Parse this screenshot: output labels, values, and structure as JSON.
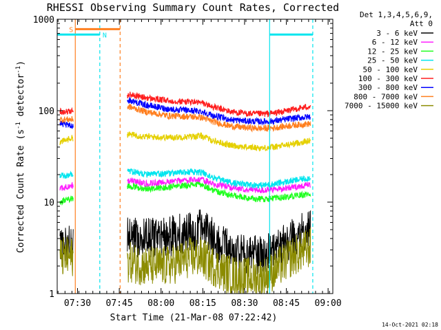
{
  "chart_data": {
    "type": "line",
    "title": "RHESSI Observing Summary Count Rates, Corrected",
    "xlabel": "Start Time (21-Mar-08 07:22:42)",
    "ylabel_main": "Corrected Count Rate (s",
    "ylabel_sup1": "-1",
    "ylabel_mid": " detector",
    "ylabel_sup2": "-1",
    "ylabel_end": ")",
    "yscale": "log",
    "ylim": [
      1,
      1000
    ],
    "xlim_minutes": [
      0,
      99
    ],
    "x_ticks": [
      {
        "label": "07:30",
        "minute": 7.3
      },
      {
        "label": "07:45",
        "minute": 22.3
      },
      {
        "label": "08:00",
        "minute": 37.3
      },
      {
        "label": "08:15",
        "minute": 52.3
      },
      {
        "label": "08:30",
        "minute": 67.3
      },
      {
        "label": "08:45",
        "minute": 82.3
      },
      {
        "label": "09:00",
        "minute": 97.3
      }
    ],
    "y_ticks": [
      {
        "label": "1",
        "value": 1
      },
      {
        "label": "10",
        "value": 10
      },
      {
        "label": "100",
        "value": 100
      },
      {
        "label": "1000",
        "value": 1000
      }
    ],
    "legend": {
      "header1": "Det 1,3,4,5,6,9,",
      "header2": "Att 0",
      "placement": "right"
    },
    "annotations": {
      "saa_label": "S",
      "night_label": "N"
    },
    "gaps_minutes": [
      [
        5.8,
        25.2
      ]
    ],
    "orbit_markers": [
      {
        "type": "saa-start",
        "minute": 6.5,
        "style": "solid",
        "color": "#ff7f1f"
      },
      {
        "type": "saa-end",
        "minute": 22.6,
        "style": "dashed",
        "color": "#ff7f1f"
      },
      {
        "type": "night-start",
        "minute": 15.3,
        "style": "dashed",
        "color": "#00e5ee"
      },
      {
        "type": "night-end",
        "minute": 76.3,
        "style": "solid",
        "color": "#00e5ee"
      },
      {
        "type": "night-start",
        "minute": 91.8,
        "style": "dashed",
        "color": "#00e5ee"
      }
    ],
    "flag_bars": [
      {
        "type": "saa",
        "start": 6.5,
        "end": 22.6,
        "value": 780,
        "color": "#ff7f1f"
      },
      {
        "type": "night",
        "start": 0,
        "end": 15.3,
        "value": 680,
        "color": "#00e5ee"
      },
      {
        "type": "night",
        "start": 76.3,
        "end": 91.8,
        "value": 680,
        "color": "#00e5ee"
      }
    ],
    "series": [
      {
        "name": "3 - 6 keV",
        "color": "#000000",
        "points": [
          [
            1,
            3.5
          ],
          [
            5,
            3.5
          ],
          [
            26,
            4.2
          ],
          [
            32,
            4.0
          ],
          [
            40,
            4.2
          ],
          [
            48,
            4.8
          ],
          [
            52,
            5.0
          ],
          [
            56,
            4.0
          ],
          [
            62,
            3.0
          ],
          [
            68,
            2.6
          ],
          [
            74,
            2.6
          ],
          [
            78,
            3.0
          ],
          [
            84,
            4.0
          ],
          [
            91,
            5.0
          ]
        ]
      },
      {
        "name": "6 - 12 keV",
        "color": "#ff1fff",
        "points": [
          [
            1,
            14
          ],
          [
            5,
            15
          ],
          [
            26,
            17
          ],
          [
            32,
            16
          ],
          [
            40,
            16.5
          ],
          [
            48,
            17.5
          ],
          [
            52,
            17.5
          ],
          [
            56,
            16
          ],
          [
            62,
            14.5
          ],
          [
            68,
            13.8
          ],
          [
            74,
            13.5
          ],
          [
            78,
            13.8
          ],
          [
            84,
            14.5
          ],
          [
            91,
            15.5
          ]
        ]
      },
      {
        "name": "12 - 25 keV",
        "color": "#1fff1f",
        "points": [
          [
            1,
            10
          ],
          [
            5,
            11
          ],
          [
            26,
            15
          ],
          [
            32,
            14
          ],
          [
            40,
            14.5
          ],
          [
            48,
            15.5
          ],
          [
            52,
            15.5
          ],
          [
            56,
            13.5
          ],
          [
            62,
            12
          ],
          [
            68,
            11
          ],
          [
            74,
            10.8
          ],
          [
            78,
            11
          ],
          [
            84,
            11.5
          ],
          [
            91,
            12.3
          ]
        ]
      },
      {
        "name": "25 - 50 keV",
        "color": "#00e5ee",
        "points": [
          [
            1,
            19
          ],
          [
            5,
            20
          ],
          [
            26,
            22
          ],
          [
            32,
            20
          ],
          [
            40,
            20.5
          ],
          [
            48,
            21.5
          ],
          [
            52,
            21
          ],
          [
            56,
            18.5
          ],
          [
            62,
            16.5
          ],
          [
            68,
            15.5
          ],
          [
            74,
            15.3
          ],
          [
            78,
            15.8
          ],
          [
            84,
            17
          ],
          [
            91,
            18.5
          ]
        ]
      },
      {
        "name": "50 - 100 keV",
        "color": "#e5d000",
        "points": [
          [
            1,
            45
          ],
          [
            5,
            50
          ],
          [
            26,
            55
          ],
          [
            32,
            52
          ],
          [
            40,
            51
          ],
          [
            48,
            52
          ],
          [
            52,
            53
          ],
          [
            56,
            47
          ],
          [
            62,
            42
          ],
          [
            68,
            40
          ],
          [
            74,
            39
          ],
          [
            78,
            40
          ],
          [
            84,
            43
          ],
          [
            91,
            47
          ]
        ]
      },
      {
        "name": "100 - 300 keV",
        "color": "#ff1f1f",
        "points": [
          [
            1,
            98
          ],
          [
            5,
            98
          ],
          [
            26,
            150
          ],
          [
            32,
            138
          ],
          [
            40,
            128
          ],
          [
            48,
            125
          ],
          [
            52,
            122
          ],
          [
            56,
            110
          ],
          [
            62,
            98
          ],
          [
            68,
            93
          ],
          [
            74,
            92
          ],
          [
            78,
            94
          ],
          [
            84,
            102
          ],
          [
            91,
            112
          ]
        ]
      },
      {
        "name": "300 - 800 keV",
        "color": "#0000ff",
        "points": [
          [
            1,
            72
          ],
          [
            5,
            68
          ],
          [
            26,
            130
          ],
          [
            32,
            115
          ],
          [
            40,
            104
          ],
          [
            48,
            100
          ],
          [
            52,
            98
          ],
          [
            56,
            88
          ],
          [
            62,
            80
          ],
          [
            68,
            77
          ],
          [
            74,
            76
          ],
          [
            78,
            77
          ],
          [
            84,
            82
          ],
          [
            91,
            86
          ]
        ]
      },
      {
        "name": "800 - 7000 keV",
        "color": "#ff7f1f",
        "points": [
          [
            1,
            80
          ],
          [
            5,
            80
          ],
          [
            26,
            110
          ],
          [
            32,
            97
          ],
          [
            40,
            88
          ],
          [
            48,
            86
          ],
          [
            52,
            84
          ],
          [
            56,
            76
          ],
          [
            62,
            68
          ],
          [
            68,
            65
          ],
          [
            74,
            64
          ],
          [
            78,
            65
          ],
          [
            84,
            69
          ],
          [
            91,
            72
          ]
        ]
      },
      {
        "name": "7000 - 15000 keV",
        "color": "#8b8b00",
        "points": [
          [
            1,
            2.5
          ],
          [
            5,
            2.5
          ],
          [
            26,
            2.2
          ],
          [
            32,
            2.0
          ],
          [
            40,
            2.0
          ],
          [
            48,
            2.5
          ],
          [
            52,
            2.5
          ],
          [
            56,
            2.0
          ],
          [
            62,
            1.6
          ],
          [
            68,
            1.5
          ],
          [
            74,
            1.5
          ],
          [
            78,
            1.8
          ],
          [
            84,
            2.5
          ],
          [
            91,
            3.2
          ]
        ]
      }
    ]
  },
  "timestamp": "14-Oct-2021 02:18"
}
